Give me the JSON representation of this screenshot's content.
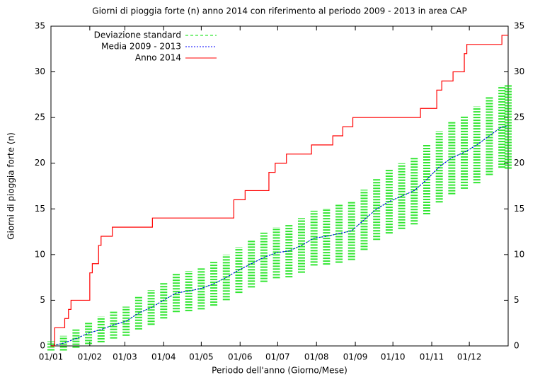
{
  "chart_data": {
    "type": "line",
    "title": "Giorni di pioggia forte (n) anno 2014 con riferimento al periodo 2009 - 2013 in area CAP",
    "xlabel": "Periodo dell'anno (Giorno/Mese)",
    "ylabel": "Giorni di pioggia forte (n)",
    "xlim": [
      0,
      365
    ],
    "xticks": [
      {
        "value": 0,
        "label": "01/01"
      },
      {
        "value": 31,
        "label": "01/02"
      },
      {
        "value": 59,
        "label": "01/03"
      },
      {
        "value": 90,
        "label": "01/04"
      },
      {
        "value": 120,
        "label": "01/05"
      },
      {
        "value": 151,
        "label": "01/06"
      },
      {
        "value": 181,
        "label": "01/07"
      },
      {
        "value": 212,
        "label": "01/08"
      },
      {
        "value": 243,
        "label": "01/09"
      },
      {
        "value": 273,
        "label": "01/10"
      },
      {
        "value": 304,
        "label": "01/11"
      },
      {
        "value": 334,
        "label": "01/12"
      }
    ],
    "ylim": [
      0,
      35
    ],
    "yticks": [
      0,
      5,
      10,
      15,
      20,
      25,
      30,
      35
    ],
    "y2lim": [
      0,
      35
    ],
    "y2ticks": [
      0,
      5,
      10,
      15,
      20,
      25,
      30,
      35
    ],
    "legend": "top-left",
    "series": [
      {
        "name": "Deviazione standard",
        "color": "#00e000",
        "style": "errorlines",
        "x": [
          0,
          10,
          20,
          30,
          40,
          50,
          60,
          70,
          80,
          90,
          100,
          110,
          120,
          130,
          140,
          150,
          160,
          170,
          180,
          190,
          200,
          210,
          220,
          230,
          240,
          250,
          260,
          270,
          280,
          290,
          300,
          310,
          320,
          330,
          340,
          350,
          360,
          365
        ],
        "values": [
          0,
          0.3,
          0.8,
          1.4,
          1.8,
          2.3,
          2.7,
          3.6,
          4.2,
          5.0,
          5.8,
          6.0,
          6.3,
          6.8,
          7.5,
          8.3,
          9.0,
          9.7,
          10.2,
          10.4,
          11.0,
          11.8,
          12.0,
          12.3,
          12.6,
          13.8,
          15.0,
          15.8,
          16.4,
          17.0,
          18.2,
          19.6,
          20.6,
          21.2,
          22.0,
          23.0,
          24.0,
          24.0
        ],
        "errors": [
          0.5,
          0.8,
          1.0,
          1.2,
          1.4,
          1.5,
          1.6,
          1.8,
          1.9,
          2.0,
          2.1,
          2.2,
          2.3,
          2.4,
          2.5,
          2.5,
          2.6,
          2.7,
          2.8,
          2.9,
          3.0,
          3.0,
          3.1,
          3.2,
          3.2,
          3.3,
          3.4,
          3.5,
          3.6,
          3.7,
          3.8,
          3.9,
          4.0,
          4.0,
          4.2,
          4.3,
          4.5,
          4.6
        ]
      },
      {
        "name": "Media 2009 - 2013",
        "color": "#0000ff",
        "style": "dotted",
        "x": [
          0,
          10,
          20,
          30,
          40,
          50,
          60,
          70,
          80,
          90,
          100,
          110,
          120,
          130,
          140,
          150,
          160,
          170,
          180,
          190,
          200,
          210,
          220,
          230,
          240,
          250,
          260,
          270,
          280,
          290,
          300,
          310,
          320,
          330,
          340,
          350,
          360,
          365
        ],
        "values": [
          0,
          0.3,
          0.8,
          1.4,
          1.8,
          2.3,
          2.7,
          3.6,
          4.2,
          5.0,
          5.8,
          6.0,
          6.3,
          6.8,
          7.5,
          8.3,
          9.0,
          9.7,
          10.2,
          10.4,
          11.0,
          11.8,
          12.0,
          12.3,
          12.6,
          13.8,
          15.0,
          15.8,
          16.4,
          17.0,
          18.2,
          19.6,
          20.6,
          21.2,
          22.0,
          23.0,
          24.0,
          24.0
        ]
      },
      {
        "name": "Anno 2014",
        "color": "#ff0000",
        "style": "step",
        "x": [
          0,
          3,
          11,
          14,
          16,
          31,
          33,
          38,
          40,
          49,
          81,
          146,
          155,
          174,
          179,
          188,
          208,
          225,
          233,
          241,
          295,
          308,
          312,
          321,
          330,
          332,
          360,
          365
        ],
        "values": [
          0,
          2,
          3,
          4,
          5,
          8,
          9,
          11,
          12,
          13,
          14,
          16,
          17,
          19,
          20,
          21,
          22,
          23,
          24,
          25,
          26,
          28,
          29,
          30,
          32,
          33,
          34,
          34
        ]
      }
    ]
  }
}
